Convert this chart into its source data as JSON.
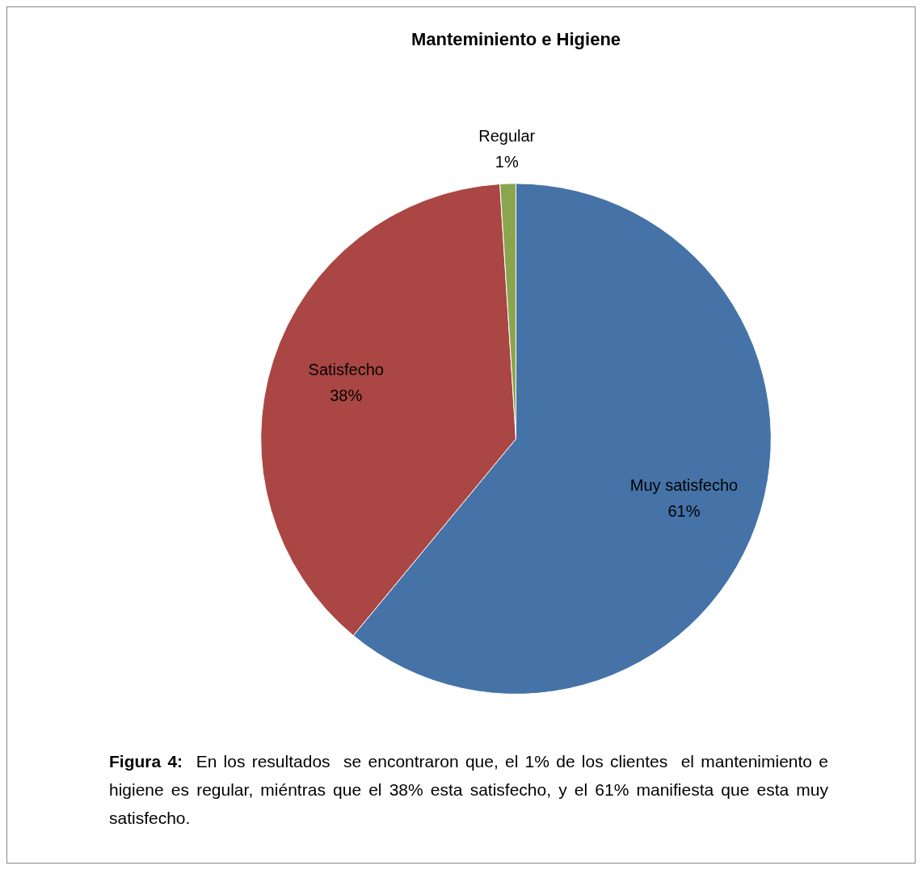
{
  "chart_data": {
    "type": "pie",
    "title": "Manteminiento e Higiene",
    "categories": [
      "Muy satisfecho",
      "Satisfecho",
      "Regular"
    ],
    "values": [
      61,
      38,
      1
    ],
    "colors": [
      "#4573a7",
      "#aa4643",
      "#89a54e"
    ],
    "value_labels": [
      "61%",
      "38%",
      "1%"
    ],
    "legend": false,
    "annotations": [
      "Figura 4:  En los resultados  se encontraron que, el 1% de los clientes  el mantenimiento e higiene es regular, miéntras que el 38% esta satisfecho, y el 61% manifiesta que esta muy satisfecho."
    ]
  }
}
